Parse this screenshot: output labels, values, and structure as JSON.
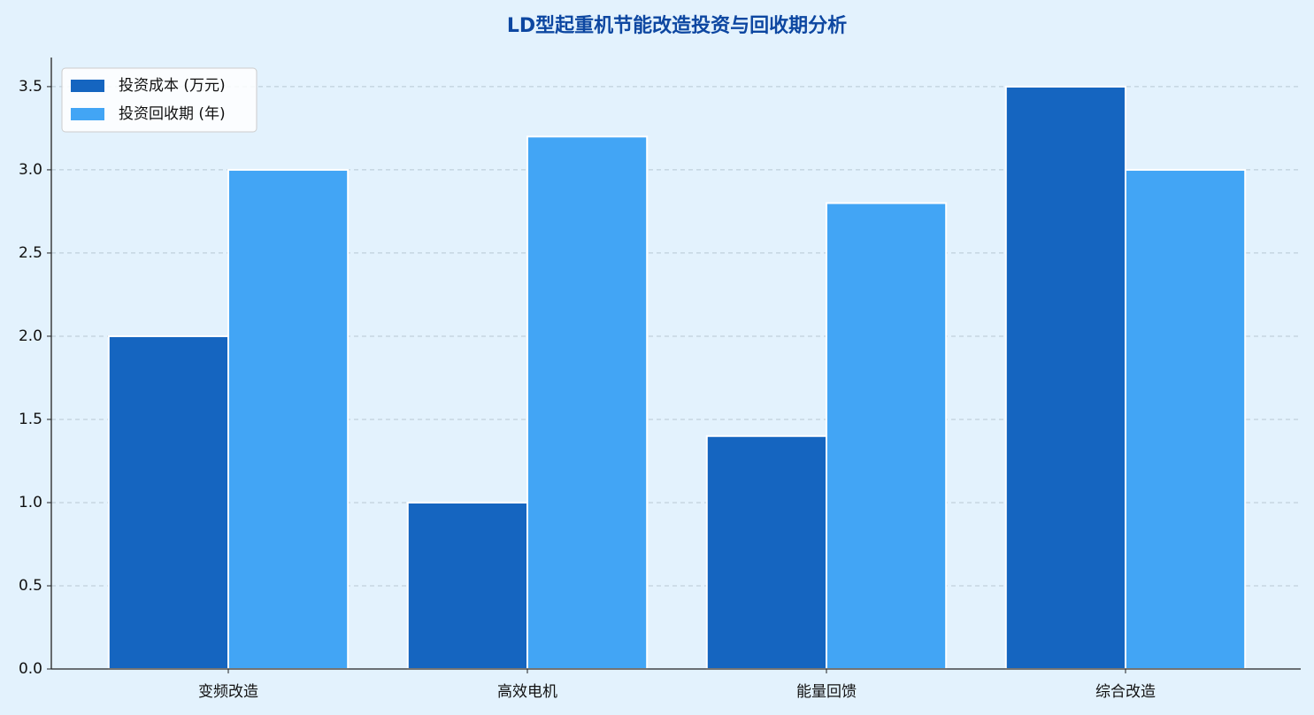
{
  "chart_data": {
    "type": "bar",
    "title": "LD型起重机节能改造投资与回收期分析",
    "categories": [
      "变频改造",
      "高效电机",
      "能量回馈",
      "综合改造"
    ],
    "series": [
      {
        "name": "投资成本 (万元)",
        "color": "#1565c0",
        "values": [
          2.0,
          1.0,
          1.4,
          3.5
        ]
      },
      {
        "name": "投资回收期 (年)",
        "color": "#42a5f5",
        "values": [
          3.0,
          3.2,
          2.8,
          3.0
        ]
      }
    ],
    "ylim": [
      0,
      3.675
    ],
    "yticks": [
      {
        "value": 0,
        "label": "0.0"
      },
      {
        "value": 0.5,
        "label": "0.5"
      },
      {
        "value": 1,
        "label": "1.0"
      },
      {
        "value": 1.5,
        "label": "1.5"
      },
      {
        "value": 2,
        "label": "2.0"
      },
      {
        "value": 2.5,
        "label": "2.5"
      },
      {
        "value": 3,
        "label": "3.0"
      },
      {
        "value": 3.5,
        "label": "3.5"
      }
    ],
    "grid": true,
    "legend": "upper-left"
  }
}
